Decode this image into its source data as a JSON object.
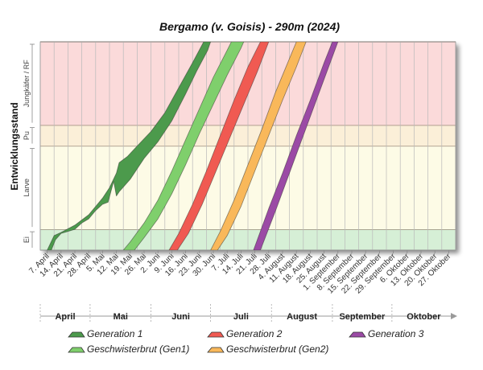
{
  "chart_data": {
    "type": "area",
    "title": "Bergamo (v. Goisis) - 290m (2024)",
    "ylabel": "Entwicklungsstand",
    "stages": [
      {
        "label": "Ei",
        "from": 0,
        "to": 10,
        "color": "#d6efd6"
      },
      {
        "label": "Larve",
        "from": 10,
        "to": 50,
        "color": "#fdfbe6"
      },
      {
        "label": "Pu",
        "from": 50,
        "to": 60,
        "color": "#fbefd8"
      },
      {
        "label": "Jungkäfer / RF",
        "from": 60,
        "to": 100,
        "color": "#fbdada"
      }
    ],
    "ylim": [
      0,
      100
    ],
    "x_ticks": [
      "7. April",
      "14. April",
      "21. April",
      "28. April",
      "5. Mai",
      "12. Mai",
      "19. Mai",
      "26. Mai",
      "2. Juni",
      "9. Juni",
      "16. Juni",
      "23. Juni",
      "30. Juni",
      "7. Juli",
      "14. Juli",
      "21. Juli",
      "28. Juli",
      "4. August",
      "11. August",
      "18. August",
      "25. August",
      "1. September",
      "8. September",
      "15. September",
      "22. September",
      "29. September",
      "6. Oktober",
      "13. Oktober",
      "20. Oktober",
      "27. Oktober"
    ],
    "months": [
      {
        "label": "April",
        "start": 0,
        "end": 3.6
      },
      {
        "label": "Mai",
        "start": 3.6,
        "end": 8.0
      },
      {
        "label": "Juni",
        "start": 8.0,
        "end": 12.3
      },
      {
        "label": "Juli",
        "start": 12.3,
        "end": 16.7
      },
      {
        "label": "August",
        "start": 16.7,
        "end": 21.1
      },
      {
        "label": "September",
        "start": 21.1,
        "end": 25.4
      },
      {
        "label": "Oktober",
        "start": 25.4,
        "end": 30.0
      }
    ],
    "series": [
      {
        "name": "Generation 1",
        "color": "#4c9a4c",
        "upper": [
          [
            0,
            0
          ],
          [
            0.5,
            7
          ],
          [
            1,
            8.5
          ],
          [
            2,
            12
          ],
          [
            3,
            17
          ],
          [
            4,
            25
          ],
          [
            4.5,
            30
          ],
          [
            5.0,
            37
          ],
          [
            5.2,
            42
          ],
          [
            5.8,
            45
          ],
          [
            6.5,
            50
          ],
          [
            7.5,
            57
          ],
          [
            8.5,
            66
          ],
          [
            9.5,
            78
          ],
          [
            10.5,
            90
          ],
          [
            11.3,
            100
          ]
        ],
        "lower": [
          [
            0.3,
            0
          ],
          [
            0.6,
            5
          ],
          [
            1,
            8
          ],
          [
            1.5,
            9
          ],
          [
            2,
            10
          ],
          [
            2.5,
            13
          ],
          [
            3,
            15
          ],
          [
            3.5,
            19
          ],
          [
            4,
            22
          ],
          [
            4.4,
            23
          ],
          [
            4.6,
            28
          ],
          [
            4.8,
            33
          ],
          [
            5.0,
            26
          ],
          [
            5.2,
            28
          ],
          [
            6,
            34
          ],
          [
            7,
            44
          ],
          [
            8,
            52
          ],
          [
            9,
            62
          ],
          [
            10,
            75
          ],
          [
            10.8,
            86
          ],
          [
            11.6,
            96
          ],
          [
            11.8,
            100
          ]
        ]
      },
      {
        "name": "Geschwisterbrut (Gen1)",
        "color": "#7fcf6c",
        "upper": [
          [
            5.5,
            0
          ],
          [
            6,
            4
          ],
          [
            7,
            13
          ],
          [
            8,
            24
          ],
          [
            9,
            38
          ],
          [
            10,
            53
          ],
          [
            11,
            68
          ],
          [
            12,
            83
          ],
          [
            13,
            96
          ],
          [
            13.3,
            100
          ]
        ],
        "lower": [
          [
            6.3,
            0
          ],
          [
            7,
            6
          ],
          [
            8,
            15
          ],
          [
            9,
            27
          ],
          [
            10,
            41
          ],
          [
            11,
            56
          ],
          [
            12,
            70
          ],
          [
            13,
            84
          ],
          [
            14,
            97
          ],
          [
            14.2,
            100
          ]
        ]
      },
      {
        "name": "Generation 2",
        "color": "#f05a52",
        "upper": [
          [
            8.8,
            0
          ],
          [
            9.5,
            8
          ],
          [
            10.5,
            22
          ],
          [
            11.5,
            38
          ],
          [
            12.5,
            55
          ],
          [
            13.5,
            72
          ],
          [
            14.5,
            88
          ],
          [
            15.4,
            100
          ]
        ],
        "lower": [
          [
            9.4,
            0
          ],
          [
            10.2,
            8
          ],
          [
            11.2,
            22
          ],
          [
            12.2,
            38
          ],
          [
            13.2,
            54
          ],
          [
            14.2,
            70
          ],
          [
            15.2,
            86
          ],
          [
            16.0,
            100
          ]
        ]
      },
      {
        "name": "Geschwisterbrut (Gen2)",
        "color": "#f9b85a",
        "upper": [
          [
            11.8,
            0
          ],
          [
            12.5,
            9
          ],
          [
            13.5,
            24
          ],
          [
            14.5,
            41
          ],
          [
            15.5,
            58
          ],
          [
            16.5,
            76
          ],
          [
            17.5,
            92
          ],
          [
            18,
            100
          ]
        ],
        "lower": [
          [
            12.3,
            0
          ],
          [
            13,
            7
          ],
          [
            14,
            21
          ],
          [
            15,
            38
          ],
          [
            16,
            55
          ],
          [
            17,
            72
          ],
          [
            18,
            88
          ],
          [
            18.7,
            100
          ]
        ]
      },
      {
        "name": "Generation 3",
        "color": "#9b4aa5",
        "upper": [
          [
            14.9,
            0
          ],
          [
            16,
            20
          ],
          [
            17,
            37
          ],
          [
            18,
            55
          ],
          [
            19,
            72
          ],
          [
            20,
            90
          ],
          [
            20.6,
            100
          ]
        ],
        "lower": [
          [
            15.4,
            0
          ],
          [
            16.5,
            19
          ],
          [
            17.5,
            37
          ],
          [
            18.5,
            55
          ],
          [
            19.5,
            73
          ],
          [
            20.5,
            91
          ],
          [
            21,
            100
          ]
        ]
      }
    ],
    "legend": [
      "Generation 1",
      "Generation 2",
      "Generation 3",
      "Geschwisterbrut (Gen1)",
      "Geschwisterbrut (Gen2)"
    ]
  }
}
